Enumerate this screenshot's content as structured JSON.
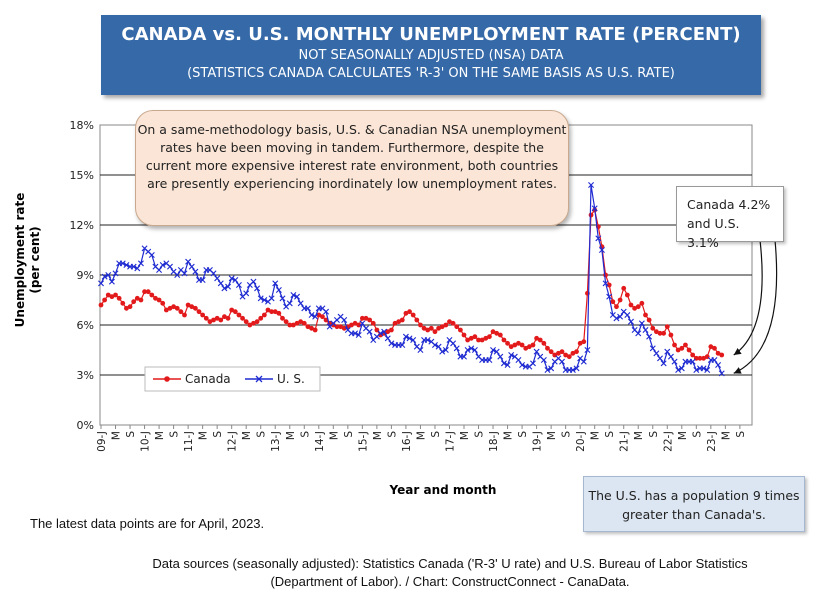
{
  "header": {
    "title": "CANADA vs. U.S. MONTHLY UNEMPLOYMENT RATE (PERCENT)",
    "subtitle1": "NOT SEASONALLY ADJUSTED (NSA) DATA",
    "subtitle2": "(STATISTICS CANADA CALCULATES 'R-3' ON THE SAME BASIS AS U.S. RATE)"
  },
  "notes": {
    "main": "On a same-methodology basis, U.S. & Canadian NSA unemployment rates have been moving in tandem. Furthermore, despite the current more expensive interest rate environment, both countries are presently experiencing inordinately low unemployment rates.",
    "latest_line1": "Canada 4.2%",
    "latest_line2": "and U.S. 3.1%",
    "population": "The U.S. has a population 9 times greater than Canada's."
  },
  "footer": {
    "latest": "The latest data points are for April, 2023.",
    "source1": "Data sources (seasonally adjusted): Statistics Canada ('R-3' U rate) and U.S. Bureau of Labor Statistics",
    "source2": "(Department of Labor). / Chart: ConstructConnect - CanaData."
  },
  "colors": {
    "canada": "#e31a1c",
    "us": "#1f2bd1",
    "title_bg": "#3569a8"
  },
  "chart_data": {
    "type": "line",
    "title": "CANADA vs. U.S. MONTHLY UNEMPLOYMENT RATE (PERCENT)",
    "xlabel": "Year and month",
    "ylabel": "Unemployment rate (per cent)",
    "ylim": [
      0,
      18
    ],
    "yticks": [
      "0%",
      "3%",
      "6%",
      "9%",
      "12%",
      "15%",
      "18%"
    ],
    "x_tick_labels": [
      "09-J",
      "M",
      "S",
      "10-J",
      "M",
      "S",
      "11-J",
      "M",
      "S",
      "12-J",
      "M",
      "S",
      "13-J",
      "M",
      "S",
      "14-J",
      "M",
      "S",
      "15-J",
      "M",
      "S",
      "16-J",
      "M",
      "S",
      "17-J",
      "M",
      "S",
      "18-J",
      "M",
      "S",
      "19-J",
      "M",
      "S",
      "20-J",
      "M",
      "S",
      "21-J",
      "M",
      "S",
      "22-J",
      "M",
      "S",
      "23-J",
      "M",
      "S"
    ],
    "start": "2009-01",
    "end": "2023-04",
    "legend": [
      "Canada",
      "U. S."
    ],
    "legend_position": "lower-left",
    "series": [
      {
        "name": "Canada",
        "marker": "circle",
        "values": [
          7.2,
          7.5,
          7.8,
          7.7,
          7.8,
          7.6,
          7.3,
          7.0,
          7.1,
          7.4,
          7.6,
          7.5,
          8.0,
          8.0,
          7.8,
          7.6,
          7.5,
          7.3,
          6.9,
          7.0,
          7.1,
          7.0,
          6.8,
          6.6,
          7.2,
          7.1,
          7.0,
          6.8,
          6.6,
          6.4,
          6.2,
          6.3,
          6.4,
          6.3,
          6.5,
          6.4,
          6.9,
          6.8,
          6.6,
          6.4,
          6.2,
          6.0,
          6.1,
          6.2,
          6.4,
          6.6,
          6.9,
          6.8,
          6.8,
          6.7,
          6.4,
          6.2,
          6.0,
          6.0,
          6.1,
          6.2,
          6.1,
          5.9,
          5.8,
          5.7,
          6.6,
          6.5,
          6.3,
          6.1,
          6.0,
          5.9,
          5.9,
          5.8,
          5.9,
          6.0,
          6.1,
          6.0,
          6.4,
          6.4,
          6.3,
          6.1,
          5.7,
          5.4,
          5.5,
          5.6,
          5.7,
          6.1,
          6.2,
          6.3,
          6.7,
          6.8,
          6.6,
          6.3,
          6.0,
          5.8,
          5.7,
          5.8,
          5.6,
          5.8,
          5.9,
          6.0,
          6.2,
          6.1,
          5.9,
          5.7,
          5.4,
          5.1,
          5.2,
          5.3,
          5.1,
          5.1,
          5.2,
          5.3,
          5.6,
          5.5,
          5.4,
          5.1,
          4.9,
          4.7,
          4.8,
          4.9,
          4.8,
          4.6,
          4.7,
          4.8,
          5.2,
          5.1,
          4.9,
          4.6,
          4.4,
          4.2,
          4.3,
          4.4,
          4.2,
          4.1,
          4.3,
          4.4,
          4.9,
          5.0,
          7.9,
          12.6,
          12.9,
          11.9,
          10.7,
          9.0,
          8.4,
          7.4,
          7.1,
          7.5,
          8.2,
          7.8,
          7.2,
          7.0,
          7.1,
          7.3,
          6.6,
          6.3,
          5.8,
          5.6,
          5.5,
          5.5,
          5.9,
          5.4,
          4.8,
          4.5,
          4.6,
          4.8,
          4.5,
          4.2,
          4.0,
          4.0,
          4.0,
          4.1,
          4.7,
          4.6,
          4.3,
          4.2
        ]
      },
      {
        "name": "U. S.",
        "marker": "x",
        "values": [
          8.5,
          8.9,
          9.0,
          8.6,
          9.1,
          9.7,
          9.7,
          9.6,
          9.5,
          9.5,
          9.4,
          9.7,
          10.6,
          10.4,
          10.2,
          9.5,
          9.3,
          9.6,
          9.7,
          9.5,
          9.2,
          9.0,
          9.3,
          9.1,
          9.8,
          9.5,
          9.2,
          8.7,
          8.7,
          9.3,
          9.3,
          9.1,
          8.8,
          8.5,
          8.2,
          8.3,
          8.8,
          8.7,
          8.4,
          7.7,
          7.9,
          8.4,
          8.6,
          8.2,
          7.6,
          7.5,
          7.4,
          7.6,
          8.5,
          8.1,
          7.6,
          7.1,
          7.3,
          7.8,
          7.7,
          7.3,
          7.0,
          7.0,
          6.6,
          6.5,
          7.0,
          7.0,
          6.8,
          5.9,
          6.1,
          6.3,
          6.5,
          6.3,
          5.7,
          5.5,
          5.5,
          5.4,
          6.1,
          5.8,
          5.6,
          5.1,
          5.3,
          5.5,
          5.6,
          5.2,
          4.9,
          4.8,
          4.8,
          4.8,
          5.3,
          5.2,
          5.1,
          4.7,
          4.5,
          5.1,
          5.1,
          5.0,
          4.8,
          4.7,
          4.4,
          4.5,
          5.1,
          4.9,
          4.6,
          4.1,
          4.1,
          4.5,
          4.6,
          4.5,
          4.1,
          3.9,
          3.9,
          3.9,
          4.5,
          4.4,
          4.1,
          3.7,
          3.6,
          4.2,
          4.1,
          3.9,
          3.6,
          3.5,
          3.5,
          3.7,
          4.4,
          4.1,
          3.9,
          3.3,
          3.4,
          3.8,
          4.0,
          3.8,
          3.3,
          3.3,
          3.3,
          3.4,
          4.0,
          3.8,
          4.5,
          14.4,
          13.0,
          11.2,
          10.5,
          8.5,
          7.7,
          6.6,
          6.4,
          6.5,
          6.8,
          6.6,
          6.2,
          5.7,
          5.5,
          6.1,
          5.7,
          5.3,
          4.6,
          4.3,
          4.0,
          3.7,
          4.4,
          4.1,
          3.8,
          3.3,
          3.4,
          3.8,
          3.8,
          3.8,
          3.3,
          3.4,
          3.4,
          3.3,
          3.9,
          3.9,
          3.6,
          3.1
        ]
      }
    ]
  }
}
